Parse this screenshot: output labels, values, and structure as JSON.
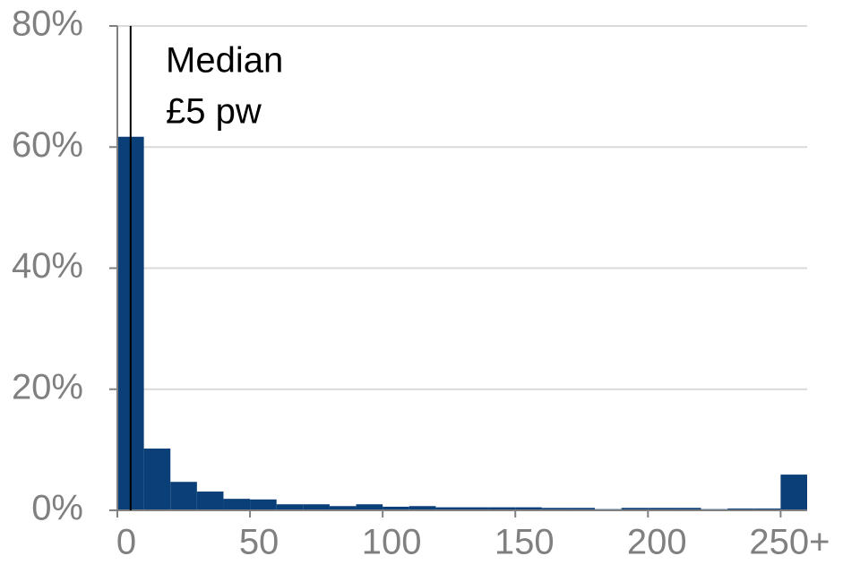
{
  "chart_data": {
    "type": "histogram",
    "bins": [
      0,
      10,
      20,
      30,
      40,
      50,
      60,
      70,
      80,
      90,
      100,
      110,
      120,
      130,
      140,
      150,
      160,
      170,
      180,
      190,
      200,
      210,
      220,
      230,
      240,
      250,
      260
    ],
    "values": [
      61.7,
      10.2,
      4.7,
      3.1,
      1.9,
      1.8,
      1.0,
      1.0,
      0.7,
      1.0,
      0.6,
      0.7,
      0.5,
      0.5,
      0.5,
      0.5,
      0.4,
      0.4,
      0.2,
      0.4,
      0.4,
      0.4,
      0.2,
      0.3,
      0.3,
      5.9
    ],
    "color": "#0b3f78",
    "xlim": [
      0,
      260
    ],
    "xticks": [
      0,
      50,
      100,
      150,
      200,
      {
        "value": 250,
        "label": "250+"
      }
    ],
    "ylim": [
      0,
      80
    ],
    "yticks": [
      {
        "value": 0,
        "label": "0%"
      },
      {
        "value": 20,
        "label": "20%"
      },
      {
        "value": 40,
        "label": "40%"
      },
      {
        "value": 60,
        "label": "60%"
      },
      {
        "value": 80,
        "label": "80%"
      }
    ],
    "grid": true,
    "annotation": {
      "x": 5,
      "lines": [
        "Median",
        "£5 pw"
      ]
    }
  }
}
